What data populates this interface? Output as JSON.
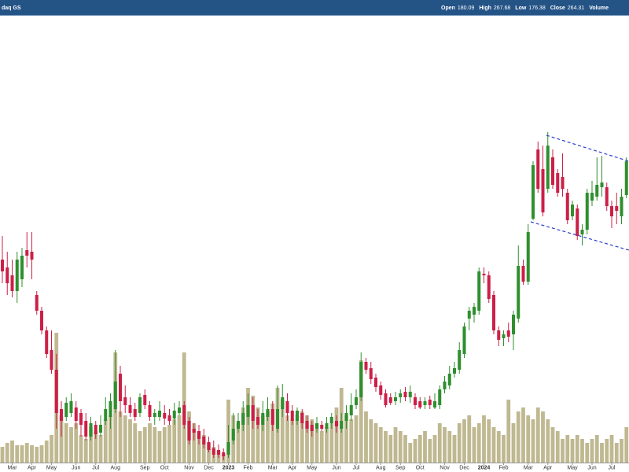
{
  "header": {
    "exchange": "daq GS",
    "ohlc": [
      {
        "label": "Open",
        "value": 180.09
      },
      {
        "label": "High",
        "value": 267.68
      },
      {
        "label": "Low",
        "value": 176.38
      },
      {
        "label": "Close",
        "value": 264.31
      },
      {
        "label": "Volume"
      }
    ]
  },
  "chart_data": {
    "type": "candlestick",
    "categories": [
      null,
      null,
      "Mar",
      null,
      null,
      null,
      "Apr",
      null,
      null,
      null,
      "May",
      null,
      null,
      null,
      null,
      "Jun",
      null,
      null,
      null,
      "Jul",
      null,
      null,
      null,
      "Aug",
      null,
      null,
      null,
      null,
      null,
      "Sep",
      null,
      null,
      null,
      "Oct",
      null,
      null,
      null,
      null,
      "Nov",
      null,
      null,
      null,
      "Dec",
      null,
      null,
      null,
      "2023",
      null,
      null,
      null,
      "Feb",
      null,
      null,
      null,
      null,
      "Mar",
      null,
      null,
      null,
      "Apr",
      null,
      null,
      null,
      "May",
      null,
      null,
      null,
      null,
      "Jun",
      null,
      null,
      null,
      "Jul",
      null,
      null,
      null,
      null,
      "Aug",
      null,
      null,
      null,
      "Sep",
      null,
      null,
      null,
      "Oct",
      null,
      null,
      null,
      null,
      "Nov",
      null,
      null,
      null,
      "Dec",
      null,
      null,
      null,
      "2024",
      null,
      null,
      null,
      "Feb",
      null,
      null,
      null,
      null,
      "Mar",
      null,
      null,
      null,
      "Apr",
      null,
      null,
      null,
      null,
      "May",
      null,
      null,
      null,
      "Jun",
      null,
      null,
      null,
      "Jul",
      null,
      null,
      null
    ],
    "open": [
      270,
      260,
      250,
      230,
      245,
      282,
      280,
      225,
      205,
      180,
      155,
      130,
      80,
      70,
      75,
      82,
      75,
      65,
      45,
      60,
      50,
      65,
      70,
      80,
      125,
      95,
      85,
      80,
      75,
      98,
      85,
      70,
      70,
      75,
      72,
      68,
      75,
      85,
      65,
      55,
      52,
      45,
      38,
      30,
      28,
      25,
      22,
      40,
      55,
      60,
      70,
      85,
      70,
      60,
      70,
      80,
      55,
      80,
      90,
      78,
      65,
      75,
      65,
      60,
      55,
      60,
      55,
      62,
      65,
      55,
      65,
      72,
      85,
      95,
      140,
      132,
      120,
      110,
      100,
      95,
      90,
      95,
      102,
      95,
      95,
      90,
      85,
      92,
      82,
      85,
      105,
      110,
      125,
      130,
      150,
      195,
      200,
      205,
      252,
      250,
      225,
      180,
      170,
      180,
      175,
      195,
      262,
      242,
      322,
      410,
      385,
      360,
      400,
      380,
      375,
      355,
      325,
      335,
      302,
      308,
      345,
      350,
      362,
      362,
      338,
      338,
      325,
      352
    ],
    "high": [
      300,
      280,
      270,
      280,
      285,
      305,
      305,
      230,
      210,
      185,
      180,
      150,
      90,
      95,
      100,
      90,
      80,
      75,
      70,
      65,
      72,
      95,
      100,
      155,
      135,
      110,
      95,
      88,
      100,
      105,
      90,
      80,
      90,
      85,
      80,
      88,
      90,
      90,
      70,
      62,
      60,
      55,
      45,
      40,
      35,
      30,
      60,
      75,
      75,
      90,
      100,
      95,
      80,
      90,
      95,
      90,
      110,
      112,
      100,
      85,
      82,
      80,
      72,
      65,
      70,
      65,
      70,
      75,
      72,
      75,
      85,
      100,
      105,
      152,
      145,
      140,
      125,
      115,
      105,
      100,
      102,
      105,
      108,
      110,
      100,
      95,
      95,
      97,
      100,
      110,
      122,
      135,
      140,
      165,
      190,
      210,
      215,
      260,
      260,
      255,
      230,
      185,
      180,
      190,
      205,
      288,
      270,
      315,
      395,
      420,
      415,
      432,
      410,
      385,
      405,
      360,
      345,
      340,
      315,
      360,
      370,
      400,
      402,
      368,
      345,
      355,
      360,
      400
    ],
    "low": [
      240,
      225,
      222,
      215,
      235,
      260,
      245,
      200,
      175,
      145,
      125,
      55,
      45,
      65,
      70,
      55,
      45,
      40,
      40,
      42,
      45,
      60,
      55,
      75,
      70,
      75,
      70,
      65,
      70,
      80,
      65,
      60,
      65,
      60,
      60,
      60,
      72,
      55,
      35,
      40,
      35,
      30,
      25,
      18,
      18,
      15,
      18,
      35,
      50,
      52,
      60,
      55,
      55,
      52,
      65,
      52,
      50,
      70,
      65,
      60,
      60,
      55,
      50,
      45,
      50,
      52,
      50,
      55,
      50,
      50,
      55,
      65,
      80,
      90,
      125,
      112,
      102,
      92,
      82,
      85,
      85,
      88,
      90,
      88,
      80,
      80,
      80,
      80,
      80,
      80,
      100,
      105,
      120,
      125,
      145,
      180,
      190,
      200,
      240,
      215,
      175,
      160,
      160,
      165,
      155,
      190,
      238,
      238,
      320,
      355,
      325,
      355,
      360,
      350,
      350,
      315,
      320,
      295,
      288,
      302,
      338,
      345,
      350,
      332,
      310,
      315,
      315,
      348
    ],
    "close": [
      255,
      240,
      230,
      270,
      275,
      275,
      270,
      205,
      180,
      150,
      130,
      75,
      65,
      88,
      90,
      65,
      60,
      45,
      62,
      48,
      60,
      80,
      90,
      115,
      90,
      85,
      75,
      70,
      95,
      85,
      70,
      75,
      78,
      68,
      65,
      78,
      82,
      60,
      40,
      50,
      42,
      35,
      28,
      22,
      22,
      20,
      38,
      55,
      65,
      75,
      85,
      65,
      60,
      75,
      80,
      60,
      80,
      95,
      75,
      65,
      78,
      62,
      55,
      52,
      62,
      55,
      62,
      70,
      58,
      65,
      75,
      85,
      95,
      140,
      130,
      118,
      108,
      98,
      85,
      88,
      95,
      100,
      95,
      102,
      85,
      82,
      90,
      85,
      90,
      105,
      115,
      125,
      132,
      155,
      185,
      205,
      210,
      255,
      250,
      220,
      180,
      168,
      175,
      172,
      200,
      262,
      242,
      305,
      390,
      360,
      330,
      415,
      365,
      355,
      360,
      320,
      340,
      300,
      308,
      355,
      355,
      365,
      368,
      338,
      325,
      332,
      350,
      395
    ],
    "volume": [
      20,
      25,
      28,
      22,
      22,
      25,
      22,
      20,
      22,
      28,
      35,
      165,
      60,
      50,
      45,
      50,
      35,
      30,
      45,
      40,
      35,
      55,
      60,
      140,
      65,
      60,
      55,
      50,
      40,
      45,
      50,
      45,
      40,
      45,
      48,
      55,
      60,
      140,
      65,
      50,
      40,
      35,
      25,
      20,
      15,
      10,
      80,
      60,
      50,
      70,
      95,
      85,
      70,
      60,
      65,
      75,
      95,
      80,
      60,
      55,
      60,
      65,
      60,
      55,
      50,
      40,
      45,
      50,
      70,
      95,
      60,
      55,
      60,
      130,
      65,
      55,
      50,
      45,
      40,
      35,
      45,
      40,
      35,
      25,
      30,
      35,
      40,
      30,
      35,
      50,
      45,
      40,
      35,
      50,
      55,
      60,
      45,
      50,
      60,
      55,
      45,
      40,
      35,
      80,
      50,
      65,
      70,
      60,
      55,
      70,
      65,
      55,
      45,
      40,
      30,
      35,
      30,
      35,
      30,
      25,
      30,
      35,
      25,
      30,
      35,
      25,
      30,
      45
    ],
    "up_color": "#2f8f2f",
    "down_color": "#cc1f48",
    "volume_color": "#bfb891",
    "ylim": [
      0,
      600
    ],
    "vlim": [
      0,
      588
    ]
  }
}
